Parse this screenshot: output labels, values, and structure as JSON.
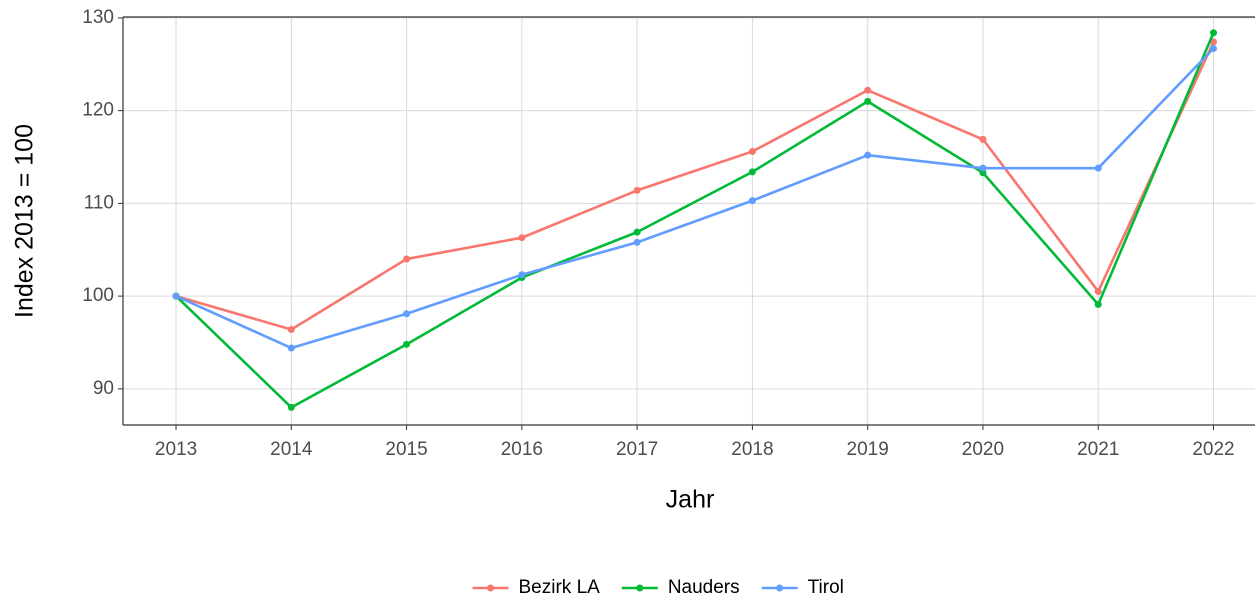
{
  "chart_data": {
    "type": "line",
    "x_label": "Jahr",
    "y_label": "Index  2013  = 100",
    "x": [
      2013,
      2014,
      2015,
      2016,
      2017,
      2018,
      2019,
      2020,
      2021,
      2022
    ],
    "series": [
      {
        "name": "Bezirk LA",
        "color": "#F8766D",
        "values": [
          100,
          96.4,
          104,
          106.3,
          111.4,
          115.6,
          122.2,
          116.9,
          100.5,
          127.4
        ]
      },
      {
        "name": "Nauders",
        "color": "#00BA38",
        "values": [
          100,
          88,
          94.8,
          102,
          106.9,
          113.4,
          121,
          113.3,
          99.1,
          128.4
        ]
      },
      {
        "name": "Tirol",
        "color": "#619CFF",
        "values": [
          100,
          94.4,
          98.1,
          102.3,
          105.8,
          110.3,
          115.2,
          113.8,
          113.8,
          126.7
        ]
      }
    ],
    "xlim": [
      2012.54,
      2022.36
    ],
    "xticks": [
      2013,
      2014,
      2015,
      2016,
      2017,
      2018,
      2019,
      2020,
      2021,
      2022
    ],
    "ylim": [
      86.1,
      130.1
    ],
    "yticks": [
      90,
      100,
      110,
      120,
      130
    ],
    "grid": true,
    "legend": "bottom"
  }
}
